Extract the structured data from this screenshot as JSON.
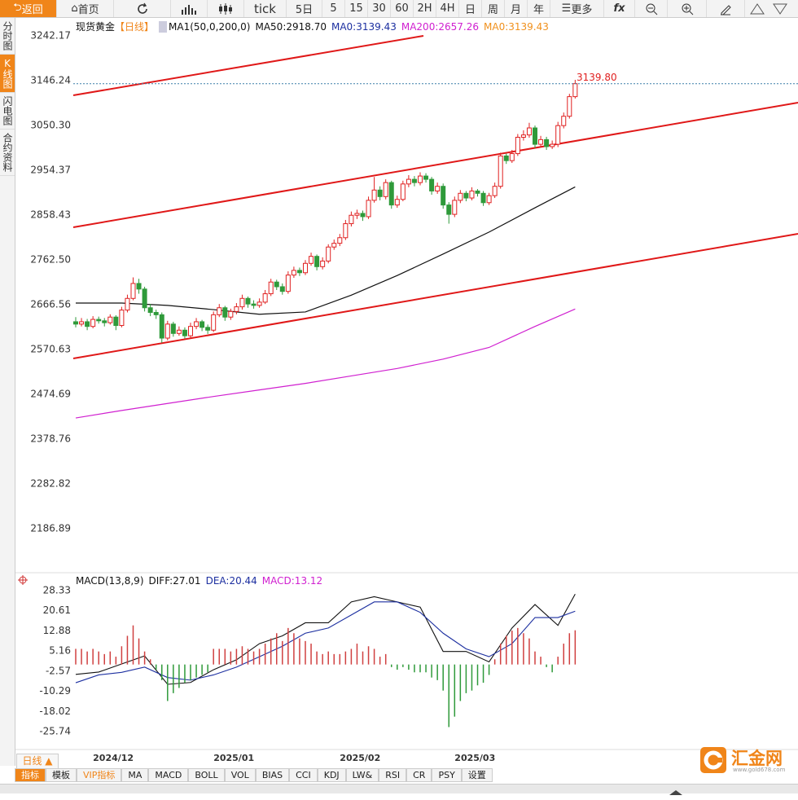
{
  "toolbar": {
    "back": "返回",
    "home": "首页",
    "periods": [
      "tick",
      "5日",
      "5",
      "15",
      "30",
      "60",
      "2H",
      "4H",
      "日",
      "周",
      "月",
      "年"
    ],
    "more": "更多",
    "fx": "fx"
  },
  "sidebar": [
    "分时图",
    "K线图",
    "闪电图",
    "合约资料"
  ],
  "bottom": {
    "period_button": "日线 ▲",
    "tabs": [
      "指标",
      "模板",
      "VIP指标",
      "MA",
      "MACD",
      "BOLL",
      "VOL",
      "BIAS",
      "CCI",
      "KDJ",
      "LW&",
      "RSI",
      "CR",
      "PSY",
      "设置"
    ]
  },
  "logo": {
    "name": "汇金网",
    "url": "www.gold678.com"
  },
  "chart_data": [
    {
      "type": "candlestick",
      "title": "现货黄金",
      "period": "【日线】",
      "indicator": "MA1(50,0,200,0)",
      "ylim": [
        2097.9,
        3280.55
      ],
      "yticks": [
        3242.17,
        3146.24,
        {
          "value": 3050.3,
          "label": "3050.30"
        },
        2954.37,
        2858.43,
        {
          "value": 2762.5,
          "label": "2762.50"
        },
        2666.56,
        2570.63,
        2474.69,
        2378.76,
        2282.82,
        2186.89
      ],
      "up_color": "#e02020",
      "down_color": "#2f9a3a",
      "last_price": {
        "value": 3139.8,
        "label": "3139.80"
      },
      "candles": [
        [
          2630,
          2640,
          2618,
          2625
        ],
        [
          2625,
          2638,
          2620,
          2630
        ],
        [
          2630,
          2636,
          2612,
          2620
        ],
        [
          2620,
          2642,
          2616,
          2635
        ],
        [
          2635,
          2641,
          2626,
          2632
        ],
        [
          2632,
          2638,
          2620,
          2628
        ],
        [
          2628,
          2646,
          2624,
          2640
        ],
        [
          2640,
          2644,
          2612,
          2622
        ],
        [
          2622,
          2662,
          2618,
          2655
        ],
        [
          2655,
          2688,
          2650,
          2680
        ],
        [
          2680,
          2725,
          2676,
          2712
        ],
        [
          2712,
          2722,
          2690,
          2700
        ],
        [
          2700,
          2705,
          2652,
          2660
        ],
        [
          2660,
          2668,
          2642,
          2650
        ],
        [
          2650,
          2656,
          2636,
          2645
        ],
        [
          2645,
          2650,
          2585,
          2595
        ],
        [
          2595,
          2632,
          2590,
          2625
        ],
        [
          2625,
          2630,
          2598,
          2605
        ],
        [
          2605,
          2620,
          2600,
          2612
        ],
        [
          2612,
          2618,
          2594,
          2600
        ],
        [
          2600,
          2628,
          2596,
          2620
        ],
        [
          2620,
          2638,
          2614,
          2630
        ],
        [
          2630,
          2634,
          2610,
          2618
        ],
        [
          2618,
          2624,
          2604,
          2612
        ],
        [
          2612,
          2652,
          2608,
          2645
        ],
        [
          2645,
          2668,
          2640,
          2660
        ],
        [
          2660,
          2664,
          2632,
          2640
        ],
        [
          2640,
          2658,
          2634,
          2652
        ],
        [
          2652,
          2670,
          2646,
          2662
        ],
        [
          2662,
          2688,
          2656,
          2680
        ],
        [
          2680,
          2684,
          2660,
          2668
        ],
        [
          2668,
          2676,
          2658,
          2665
        ],
        [
          2665,
          2680,
          2660,
          2672
        ],
        [
          2672,
          2698,
          2668,
          2690
        ],
        [
          2690,
          2722,
          2685,
          2715
        ],
        [
          2715,
          2720,
          2698,
          2705
        ],
        [
          2705,
          2712,
          2688,
          2695
        ],
        [
          2695,
          2738,
          2690,
          2730
        ],
        [
          2730,
          2748,
          2724,
          2740
        ],
        [
          2740,
          2746,
          2728,
          2735
        ],
        [
          2735,
          2762,
          2730,
          2755
        ],
        [
          2755,
          2778,
          2750,
          2770
        ],
        [
          2770,
          2774,
          2740,
          2748
        ],
        [
          2748,
          2768,
          2742,
          2760
        ],
        [
          2760,
          2796,
          2755,
          2790
        ],
        [
          2790,
          2806,
          2784,
          2798
        ],
        [
          2798,
          2818,
          2792,
          2810
        ],
        [
          2810,
          2848,
          2805,
          2840
        ],
        [
          2840,
          2866,
          2834,
          2858
        ],
        [
          2858,
          2870,
          2850,
          2862
        ],
        [
          2862,
          2868,
          2846,
          2855
        ],
        [
          2855,
          2898,
          2850,
          2890
        ],
        [
          2890,
          2940,
          2885,
          2912
        ],
        [
          2912,
          2920,
          2890,
          2898
        ],
        [
          2898,
          2935,
          2892,
          2928
        ],
        [
          2928,
          2932,
          2872,
          2880
        ],
        [
          2880,
          2900,
          2874,
          2892
        ],
        [
          2892,
          2932,
          2888,
          2925
        ],
        [
          2925,
          2944,
          2918,
          2935
        ],
        [
          2935,
          2942,
          2920,
          2928
        ],
        [
          2928,
          2950,
          2922,
          2942
        ],
        [
          2942,
          2948,
          2928,
          2935
        ],
        [
          2935,
          2940,
          2902,
          2910
        ],
        [
          2910,
          2928,
          2904,
          2920
        ],
        [
          2920,
          2926,
          2872,
          2880
        ],
        [
          2880,
          2886,
          2840,
          2860
        ],
        [
          2860,
          2898,
          2854,
          2890
        ],
        [
          2890,
          2912,
          2884,
          2905
        ],
        [
          2905,
          2910,
          2888,
          2895
        ],
        [
          2895,
          2918,
          2890,
          2910
        ],
        [
          2910,
          2914,
          2898,
          2905
        ],
        [
          2905,
          2910,
          2878,
          2885
        ],
        [
          2885,
          2906,
          2880,
          2900
        ],
        [
          2900,
          2928,
          2895,
          2920
        ],
        [
          2920,
          2992,
          2915,
          2985
        ],
        [
          2985,
          2990,
          2968,
          2975
        ],
        [
          2975,
          2998,
          2970,
          2990
        ],
        [
          2990,
          3032,
          2985,
          3025
        ],
        [
          3025,
          3040,
          3018,
          3030
        ],
        [
          3030,
          3056,
          3024,
          3045
        ],
        [
          3045,
          3050,
          3002,
          3010
        ],
        [
          3010,
          3028,
          3004,
          3020
        ],
        [
          3020,
          3026,
          2998,
          3005
        ],
        [
          3005,
          3018,
          3000,
          3010
        ],
        [
          3010,
          3058,
          3004,
          3050
        ],
        [
          3050,
          3078,
          3044,
          3070
        ],
        [
          3070,
          3118,
          3065,
          3112
        ],
        [
          3112,
          3148,
          3108,
          3139.8
        ]
      ],
      "series": [
        {
          "name": "MA50:2918.70",
          "color": "#111111",
          "x": [
            0,
            8,
            16,
            24,
            32,
            40,
            48,
            56,
            64,
            72,
            80,
            87
          ],
          "values": [
            2670,
            2670,
            2665,
            2656,
            2646,
            2651,
            2687,
            2729,
            2775,
            2822,
            2874,
            2918.7
          ]
        },
        {
          "name": "MA0:3139.43",
          "color": "#1c2fa0"
        },
        {
          "name": "MA200:2657.26",
          "color": "#d020d0",
          "x": [
            0,
            8,
            16,
            24,
            32,
            40,
            48,
            56,
            64,
            72,
            80,
            87
          ],
          "values": [
            2424,
            2440,
            2455,
            2470,
            2484,
            2498,
            2514,
            2530,
            2550,
            2575,
            2620,
            2657.26
          ]
        },
        {
          "name": "MA0:3139.43",
          "color": "#f0901c"
        }
      ]
    },
    {
      "type": "macd",
      "title": "MACD(13,8,9)",
      "ylim": [
        -32.6,
        34.58
      ],
      "yticks": [
        28.33,
        20.61,
        12.88,
        5.16,
        -2.57,
        -10.29,
        -18.02,
        -25.74
      ],
      "xticks": [
        {
          "value": 3,
          "label": "2024/12"
        },
        {
          "value": 24,
          "label": "2025/01"
        },
        {
          "value": 46,
          "label": "2025/02"
        },
        {
          "value": 66,
          "label": "2025/03"
        }
      ],
      "up_color": "#d04040",
      "down_color": "#2f9a3a",
      "series": [
        {
          "name": "DIFF:27.01",
          "color": "#111111",
          "x": [
            0,
            4,
            8,
            12,
            16,
            20,
            24,
            28,
            32,
            36,
            40,
            44,
            48,
            52,
            56,
            60,
            64,
            68,
            72,
            76,
            80,
            84,
            87
          ],
          "values": [
            -3.8,
            -2.9,
            0.2,
            3.3,
            -7.6,
            -6.9,
            -2,
            1.8,
            8,
            11,
            16,
            16,
            24,
            26,
            24,
            22,
            5,
            5,
            1,
            14,
            23,
            15,
            27.01
          ]
        },
        {
          "name": "DEA:20.44",
          "color": "#1c2fa0",
          "x": [
            0,
            4,
            8,
            12,
            16,
            20,
            24,
            28,
            32,
            36,
            40,
            44,
            48,
            52,
            56,
            60,
            64,
            68,
            72,
            76,
            80,
            84,
            87
          ],
          "values": [
            -7,
            -4,
            -3,
            -1,
            -5,
            -6,
            -4,
            -1,
            3,
            7,
            12,
            14,
            19,
            24,
            24,
            20,
            12,
            6,
            3,
            8,
            18,
            18,
            20.44
          ]
        },
        {
          "name": "MACD:13.12",
          "color": "#d020d0",
          "values": [
            6,
            6,
            5,
            6,
            5,
            4,
            5,
            3,
            7,
            11,
            15,
            10,
            5,
            2,
            -2,
            -6,
            -14,
            -11,
            -9,
            -7,
            -6,
            -5,
            -4,
            -3,
            6,
            6,
            6,
            5,
            6,
            7,
            6,
            5,
            6,
            8,
            10,
            12,
            9,
            14,
            12,
            10,
            9,
            8,
            5,
            4,
            5,
            4,
            4,
            5,
            6,
            8,
            5,
            7,
            6,
            3,
            4,
            -1,
            -2,
            -1,
            -2,
            -3,
            -3,
            -3,
            -5,
            -6,
            -10,
            -24,
            -20,
            -14,
            -11,
            -10,
            -8,
            -7,
            -4,
            2,
            8,
            11,
            13,
            14,
            12,
            10,
            5,
            3,
            -1,
            -3,
            3,
            8,
            12,
            13.12
          ]
        }
      ]
    }
  ]
}
